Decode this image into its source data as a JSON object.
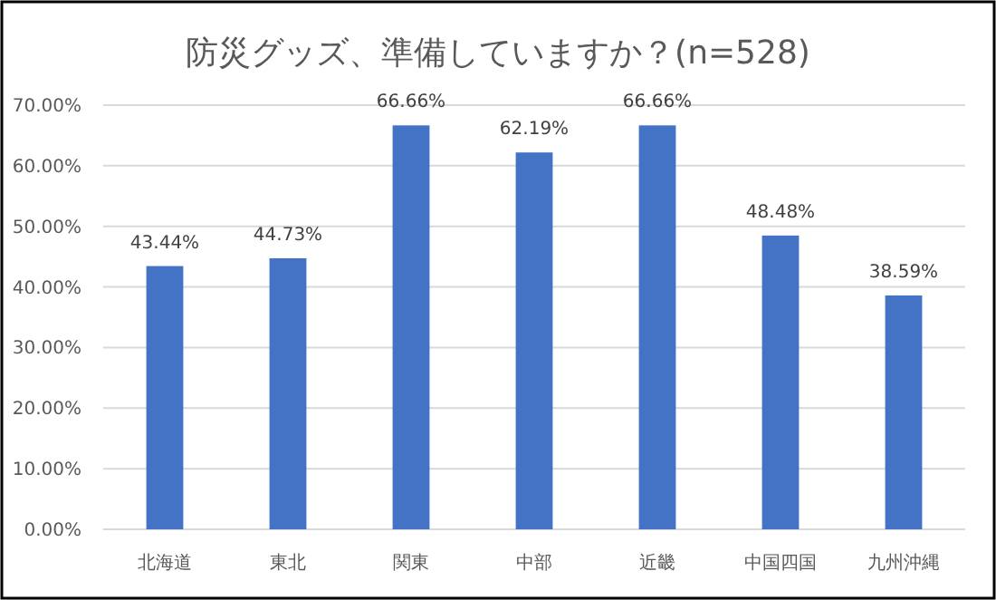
{
  "chart_data": {
    "type": "bar",
    "title": "防災グッズ、準備していますか？(n=528)",
    "categories": [
      "北海道",
      "東北",
      "関東",
      "中部",
      "近畿",
      "中国四国",
      "九州沖縄"
    ],
    "values": [
      43.44,
      44.73,
      66.66,
      62.19,
      66.66,
      48.48,
      38.59
    ],
    "value_labels": [
      "43.44%",
      "44.73%",
      "66.66%",
      "62.19%",
      "66.66%",
      "48.48%",
      "38.59%"
    ],
    "color": "#4472c4",
    "ylim": [
      0,
      70
    ],
    "yticks": [
      {
        "value": 0,
        "label": "0.00%"
      },
      {
        "value": 10,
        "label": "10.00%"
      },
      {
        "value": 20,
        "label": "20.00%"
      },
      {
        "value": 30,
        "label": "30.00%"
      },
      {
        "value": 40,
        "label": "40.00%"
      },
      {
        "value": 50,
        "label": "50.00%"
      },
      {
        "value": 60,
        "label": "60.00%"
      },
      {
        "value": 70,
        "label": "70.00%"
      }
    ],
    "grid": "y"
  }
}
